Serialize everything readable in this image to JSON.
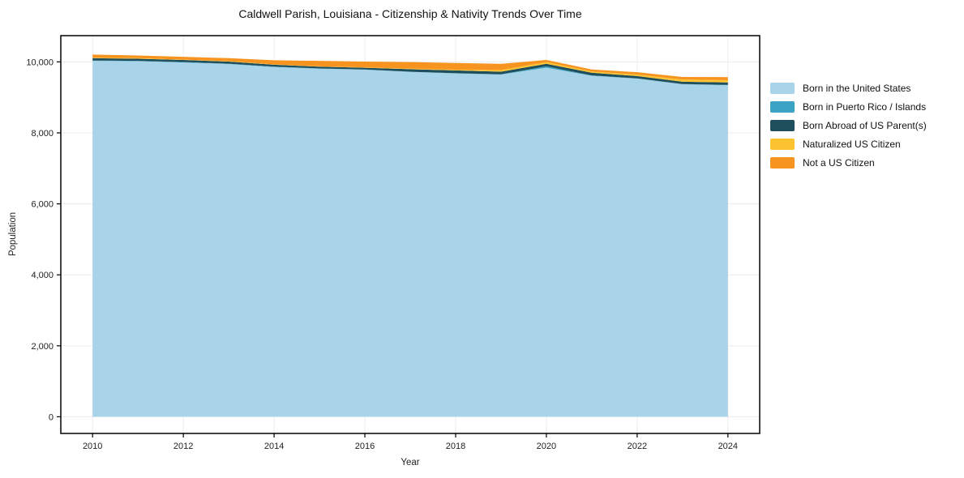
{
  "chart_data": {
    "type": "area",
    "stacked": true,
    "title": "Caldwell Parish, Louisiana - Citizenship & Nativity Trends Over Time",
    "xlabel": "Year",
    "ylabel": "Population",
    "x": [
      2010,
      2011,
      2012,
      2013,
      2014,
      2015,
      2016,
      2017,
      2018,
      2019,
      2020,
      2021,
      2022,
      2023,
      2024
    ],
    "series": [
      {
        "name": "Born in the United States",
        "color": "#a9d3e8",
        "values": [
          10030,
          10020,
          9985,
          9940,
          9855,
          9810,
          9780,
          9720,
          9675,
          9645,
          9835,
          9610,
          9530,
          9370,
          9345
        ]
      },
      {
        "name": "Born in Puerto Rico / Islands",
        "color": "#3ba4c4",
        "values": [
          10,
          10,
          10,
          10,
          10,
          5,
          5,
          5,
          5,
          5,
          40,
          10,
          5,
          5,
          10
        ]
      },
      {
        "name": "Born Abroad of US Parent(s)",
        "color": "#1f4e5c",
        "values": [
          65,
          60,
          60,
          60,
          55,
          50,
          50,
          70,
          80,
          75,
          70,
          75,
          65,
          65,
          65
        ]
      },
      {
        "name": "Naturalized US Citizen",
        "color": "#fdc330",
        "values": [
          15,
          15,
          10,
          10,
          10,
          10,
          10,
          15,
          20,
          45,
          50,
          35,
          45,
          65,
          65
        ]
      },
      {
        "name": "Not a US Citizen",
        "color": "#f7941f",
        "values": [
          85,
          75,
          80,
          85,
          115,
          155,
          165,
          185,
          190,
          175,
          60,
          55,
          65,
          70,
          85
        ]
      }
    ],
    "xlim": [
      2009.3,
      2024.7
    ],
    "ylim": [
      -470,
      10740
    ],
    "xticks": [
      2010,
      2012,
      2014,
      2016,
      2018,
      2020,
      2022,
      2024
    ],
    "xtick_labels": [
      "2010",
      "2012",
      "2014",
      "2016",
      "2018",
      "2020",
      "2022",
      "2024"
    ],
    "yticks": [
      0,
      2000,
      4000,
      6000,
      8000,
      10000
    ],
    "ytick_labels": [
      "0",
      "2,000",
      "4,000",
      "6,000",
      "8,000",
      "10,000"
    ],
    "grid": true,
    "legend_position": "right",
    "grid_color": "#ececec",
    "frame_color": "#000000",
    "tick_label_color": "#222222"
  }
}
